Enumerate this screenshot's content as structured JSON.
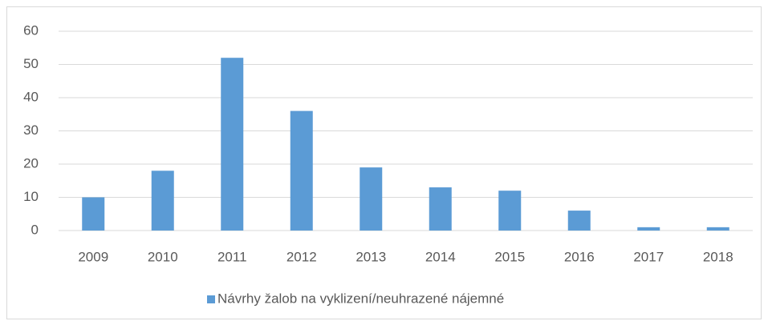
{
  "chart_data": {
    "type": "bar",
    "categories": [
      "2009",
      "2010",
      "2011",
      "2012",
      "2013",
      "2014",
      "2015",
      "2016",
      "2017",
      "2018"
    ],
    "series": [
      {
        "name": "Návrhy žalob na vyklizení/neuhrazené nájemné",
        "color": "#5b9bd5",
        "values": [
          10,
          18,
          52,
          36,
          19,
          13,
          12,
          6,
          1,
          1
        ]
      }
    ],
    "ylim": [
      0,
      60
    ],
    "yticks": [
      0,
      10,
      20,
      30,
      40,
      50,
      60
    ],
    "grid": true,
    "legend": "bottom"
  }
}
